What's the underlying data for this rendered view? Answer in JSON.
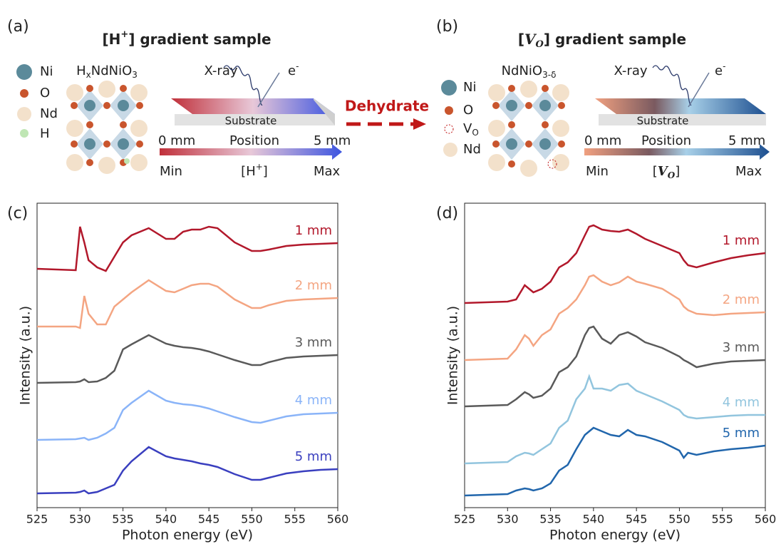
{
  "panels": {
    "a": {
      "label": "(a)",
      "title": {
        "pre": "[H",
        "sup": "+",
        "post": "] gradient sample"
      },
      "legend": [
        "Ni",
        "O",
        "Nd",
        "H"
      ],
      "formula": {
        "p1": "H",
        "s1": "x",
        "p2": "NdNiO",
        "s2": "3"
      },
      "xray": "X-ray",
      "electron": {
        "base": "e",
        "sup": "-"
      },
      "substrate": "Substrate",
      "start": "0 mm",
      "position": "Position",
      "end": "5 mm",
      "min": "Min",
      "quantity": {
        "pre": "[H",
        "sup": "+",
        "post": "]"
      },
      "max": "Max"
    },
    "arrow": "Dehydrate",
    "b": {
      "label": "(b)",
      "title": {
        "pre": "[",
        "base": "V",
        "sub": "O",
        "post": "] gradient sample"
      },
      "legend": [
        "Ni",
        "O",
        {
          "base": "V",
          "sub": "O"
        },
        "Nd"
      ],
      "formula": {
        "p1": "NdNiO",
        "s1": "3-δ"
      },
      "xray": "X-ray",
      "electron": {
        "base": "e",
        "sup": "-"
      },
      "substrate": "Substrate",
      "start": "0 mm",
      "position": "Position",
      "end": "5 mm",
      "min": "Min",
      "quantity": {
        "pre": "[",
        "base": "V",
        "sub": "O",
        "post": "]"
      },
      "max": "Max"
    }
  },
  "chart_data": [
    {
      "type": "line",
      "label": "(c)",
      "x_label": "Photon energy (eV)",
      "y_label": "Intensity (a.u.)",
      "x": [
        525,
        529.5,
        530,
        530.5,
        531,
        532,
        533,
        534,
        535,
        536,
        538,
        540,
        541,
        542,
        543,
        544,
        545,
        546,
        548,
        550,
        551,
        552,
        554,
        556,
        558,
        560
      ],
      "xlim": [
        525,
        560
      ],
      "xticks": [
        525,
        530,
        535,
        540,
        545,
        550,
        555,
        560
      ],
      "ylim": [
        0,
        427
      ],
      "series": [
        {
          "name": "1 mm",
          "color": "#b2182b",
          "values": [
            335,
            333,
            394,
            372,
            347,
            337,
            332,
            352,
            372,
            382,
            392,
            377,
            377,
            387,
            390,
            390,
            394,
            392,
            372,
            360,
            360,
            362,
            367,
            369,
            370,
            371
          ]
        },
        {
          "name": "2 mm",
          "color": "#f4a582",
          "values": [
            254,
            254,
            252,
            297,
            272,
            257,
            257,
            282,
            292,
            302,
            319,
            304,
            302,
            307,
            312,
            314,
            314,
            310,
            292,
            280,
            280,
            284,
            290,
            292,
            293,
            294
          ]
        },
        {
          "name": "3 mm",
          "color": "#5a5a5a",
          "values": [
            175,
            176,
            177,
            180,
            176,
            177,
            182,
            192,
            222,
            229,
            242,
            230,
            227,
            225,
            224,
            222,
            219,
            215,
            207,
            200,
            200,
            204,
            210,
            212,
            213,
            214
          ]
        },
        {
          "name": "4 mm",
          "color": "#8ab4f8",
          "values": [
            95,
            96,
            97,
            98,
            95,
            98,
            104,
            112,
            137,
            147,
            164,
            150,
            147,
            145,
            144,
            142,
            139,
            135,
            127,
            120,
            119,
            122,
            128,
            131,
            132,
            133
          ]
        },
        {
          "name": "5 mm",
          "color": "#3a3fbf",
          "values": [
            20,
            21,
            22,
            24,
            20,
            22,
            27,
            32,
            52,
            65,
            85,
            72,
            69,
            67,
            65,
            62,
            60,
            57,
            47,
            39,
            39,
            42,
            48,
            51,
            53,
            54
          ]
        }
      ]
    },
    {
      "type": "line",
      "label": "(d)",
      "x_label": "Photon energy (eV)",
      "y_label": "Intensity (a.u.)",
      "x": [
        525,
        530,
        531,
        532,
        532.5,
        533,
        534,
        535,
        536,
        537,
        538,
        539,
        539.5,
        540,
        541,
        542,
        543,
        544,
        545,
        546,
        548,
        550,
        550.5,
        551,
        552,
        554,
        556,
        558,
        560
      ],
      "xlim": [
        525,
        560
      ],
      "xticks": [
        525,
        530,
        535,
        540,
        545,
        550,
        555,
        560
      ],
      "ylim": [
        0,
        427
      ],
      "series": [
        {
          "name": "1 mm",
          "color": "#b2182b",
          "values": [
            287,
            289,
            292,
            312,
            307,
            302,
            307,
            317,
            337,
            344,
            357,
            382,
            394,
            396,
            390,
            388,
            387,
            390,
            384,
            377,
            367,
            357,
            347,
            340,
            337,
            344,
            350,
            354,
            357
          ]
        },
        {
          "name": "2 mm",
          "color": "#f4a582",
          "values": [
            207,
            209,
            222,
            242,
            237,
            227,
            242,
            250,
            272,
            280,
            292,
            312,
            324,
            326,
            317,
            312,
            316,
            324,
            317,
            314,
            307,
            292,
            282,
            277,
            272,
            270,
            272,
            273,
            274
          ]
        },
        {
          "name": "3 mm",
          "color": "#5a5a5a",
          "values": [
            142,
            144,
            152,
            162,
            159,
            154,
            157,
            167,
            190,
            197,
            212,
            242,
            252,
            254,
            237,
            230,
            242,
            246,
            240,
            232,
            224,
            212,
            207,
            204,
            197,
            202,
            205,
            206,
            207
          ]
        },
        {
          "name": "4 mm",
          "color": "#92c5de",
          "values": [
            62,
            64,
            72,
            77,
            76,
            74,
            82,
            90,
            112,
            122,
            152,
            167,
            184,
            167,
            167,
            164,
            172,
            174,
            164,
            159,
            149,
            137,
            130,
            127,
            125,
            127,
            129,
            130,
            130
          ]
        },
        {
          "name": "5 mm",
          "color": "#2166ac",
          "values": [
            17,
            19,
            24,
            27,
            26,
            24,
            27,
            34,
            52,
            60,
            82,
            102,
            107,
            112,
            107,
            102,
            100,
            109,
            102,
            100,
            92,
            80,
            70,
            77,
            74,
            79,
            82,
            84,
            87
          ]
        }
      ]
    }
  ]
}
